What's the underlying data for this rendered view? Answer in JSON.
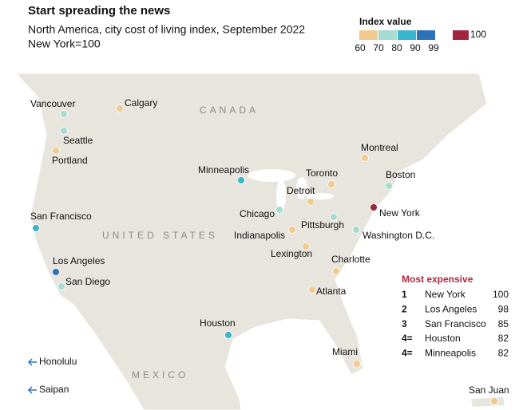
{
  "header": {
    "title": "Start spreading the news",
    "subtitle": "North America, city cost of living index, September 2022",
    "note": "New York=100"
  },
  "legend": {
    "title": "Index value",
    "bins": [
      {
        "color": "#f2ca8e"
      },
      {
        "color": "#a7dbd2"
      },
      {
        "color": "#3cb6cc"
      },
      {
        "color": "#2b72b8"
      }
    ],
    "ticks": [
      60,
      70,
      80,
      90,
      99
    ],
    "top": {
      "color": "#a3263f",
      "label": 100
    }
  },
  "countries": [
    "CANADA",
    "UNITED STATES",
    "MEXICO"
  ],
  "cities": [
    {
      "name": "Vancouver",
      "color": "#a7dbd2"
    },
    {
      "name": "Calgary",
      "color": "#f2ca8e"
    },
    {
      "name": "Seattle",
      "color": "#a7dbd2"
    },
    {
      "name": "Portland",
      "color": "#f2ca8e"
    },
    {
      "name": "San Francisco",
      "color": "#3cb6cc"
    },
    {
      "name": "Los Angeles",
      "color": "#2b72b8"
    },
    {
      "name": "San Diego",
      "color": "#a7dbd2"
    },
    {
      "name": "Minneapolis",
      "color": "#3cb6cc"
    },
    {
      "name": "Chicago",
      "color": "#a7dbd2"
    },
    {
      "name": "Detroit",
      "color": "#f2ca8e"
    },
    {
      "name": "Toronto",
      "color": "#f2ca8e"
    },
    {
      "name": "Montreal",
      "color": "#f2ca8e"
    },
    {
      "name": "Boston",
      "color": "#a7dbd2"
    },
    {
      "name": "New York",
      "color": "#a3263f"
    },
    {
      "name": "Pittsburgh",
      "color": "#a7dbd2"
    },
    {
      "name": "Washington D.C.",
      "color": "#a7dbd2"
    },
    {
      "name": "Indianapolis",
      "color": "#f2ca8e"
    },
    {
      "name": "Lexington",
      "color": "#f2ca8e"
    },
    {
      "name": "Charlotte",
      "color": "#f2ca8e"
    },
    {
      "name": "Atlanta",
      "color": "#f2ca8e"
    },
    {
      "name": "Houston",
      "color": "#3cb6cc"
    },
    {
      "name": "Miami",
      "color": "#f2ca8e"
    },
    {
      "name": "San Juan",
      "color": "#f2ca8e"
    }
  ],
  "offmap": [
    "Honolulu",
    "Saipan"
  ],
  "ranking": {
    "title": "Most expensive",
    "rows": [
      [
        "1",
        "New York",
        100
      ],
      [
        "2",
        "Los Angeles",
        98
      ],
      [
        "3",
        "San Francisco",
        85
      ],
      [
        "4=",
        "Houston",
        82
      ],
      [
        "4=",
        "Minneapolis",
        82
      ]
    ]
  }
}
